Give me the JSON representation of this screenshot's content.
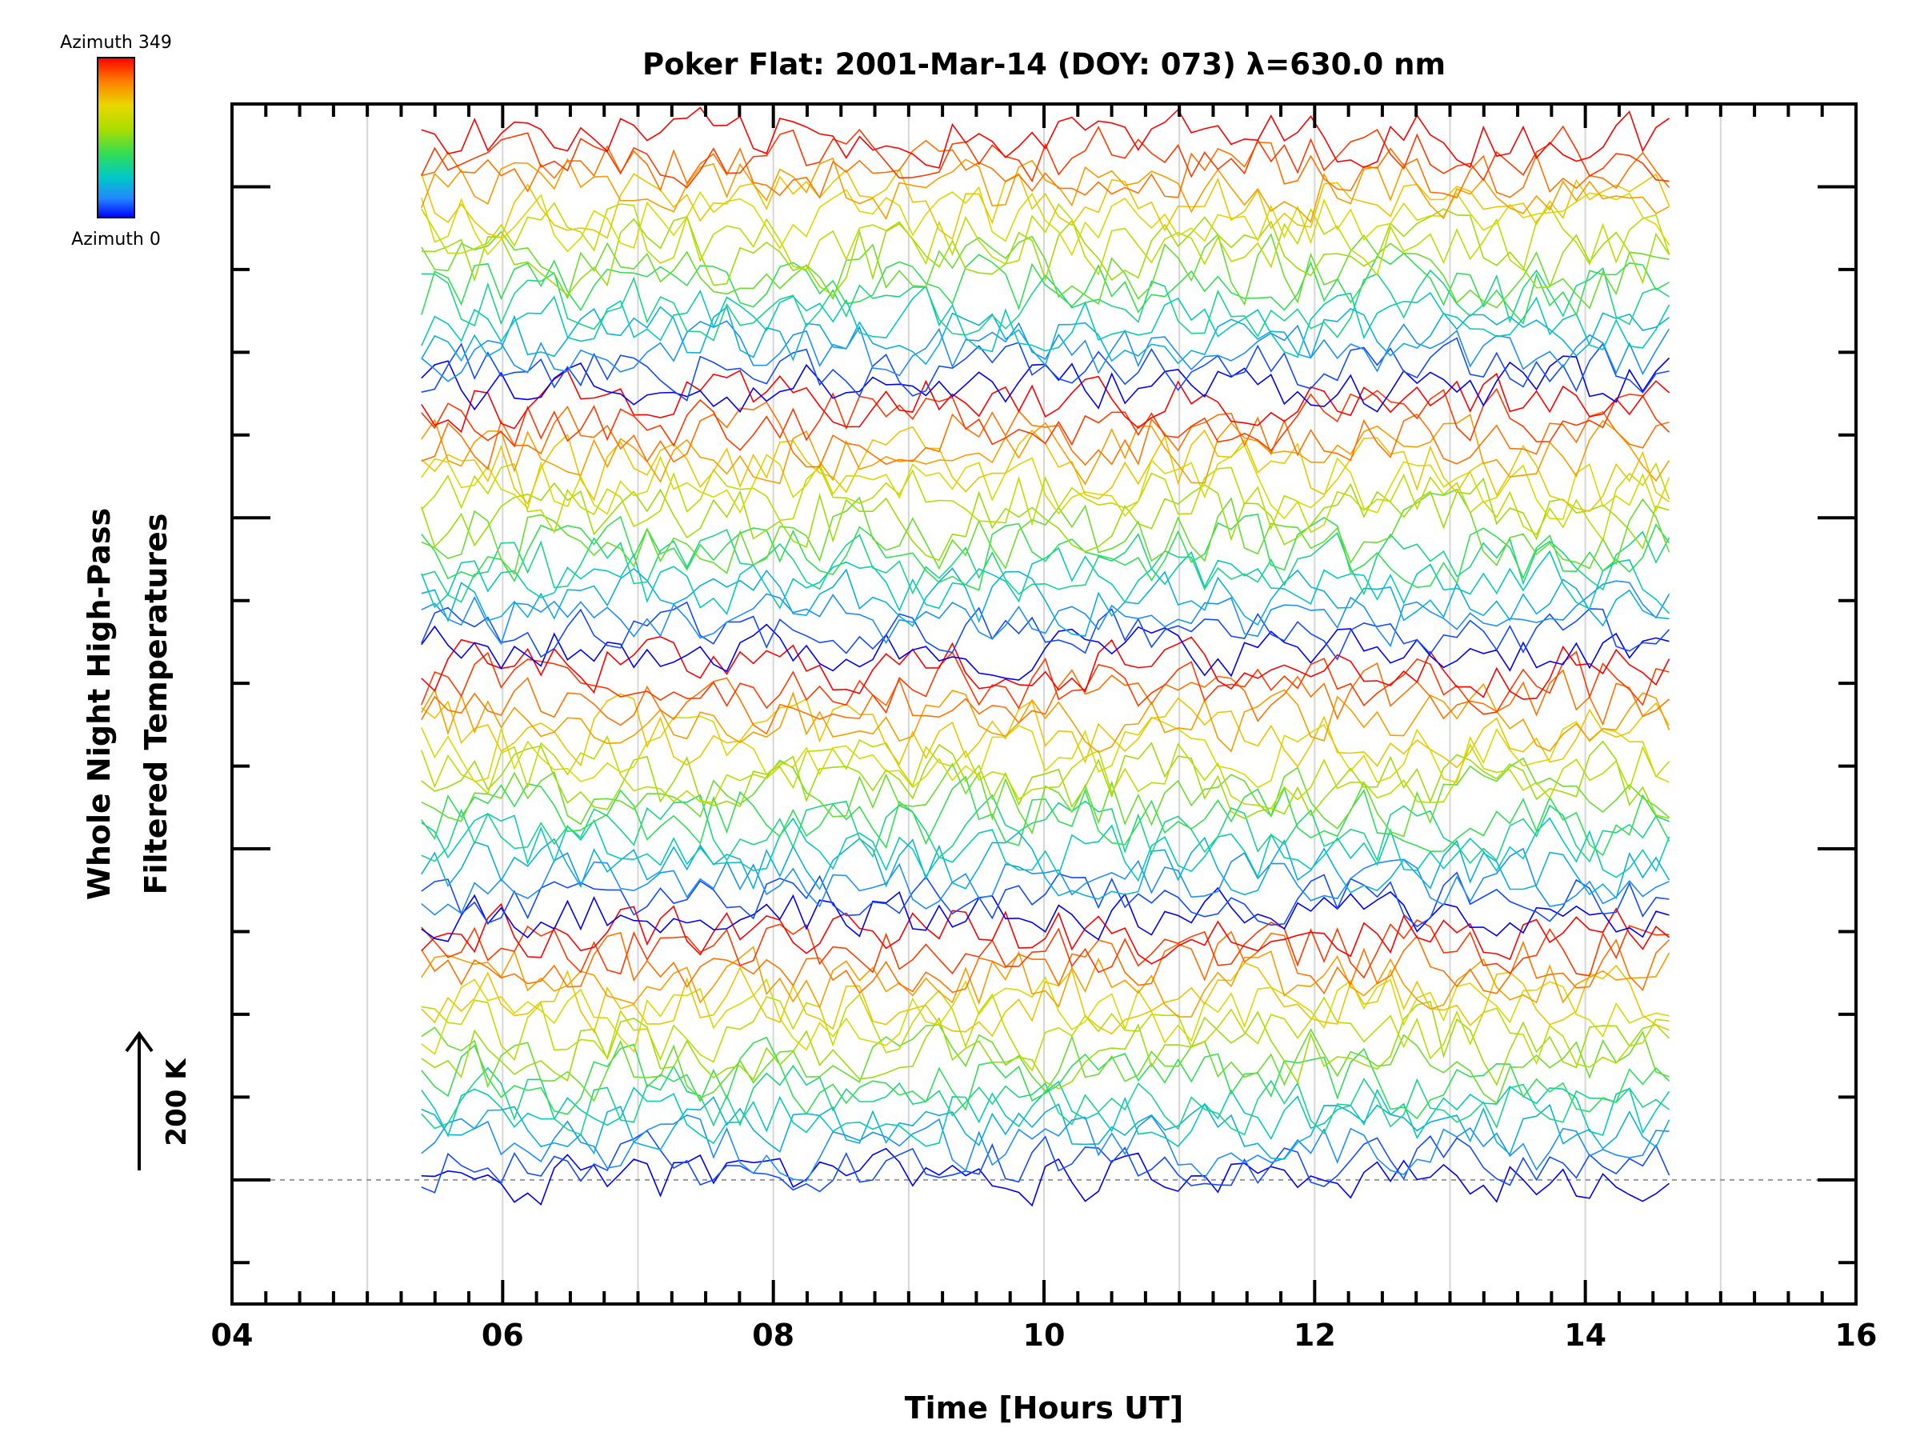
{
  "chart_data": {
    "type": "line",
    "title": "Poker Flat: 2001-Mar-14 (DOY: 073) λ=630.0 nm",
    "xlabel": "Time [Hours UT]",
    "ylabel_line1": "Whole Night High-Pass",
    "ylabel_line2": "Filtered Temperatures",
    "xlim": [
      4,
      16
    ],
    "x_ticks": [
      {
        "value": 4,
        "label": "04"
      },
      {
        "value": 6,
        "label": "06"
      },
      {
        "value": 8,
        "label": "08"
      },
      {
        "value": 10,
        "label": "10"
      },
      {
        "value": 12,
        "label": "12"
      },
      {
        "value": 14,
        "label": "14"
      },
      {
        "value": 16,
        "label": "16"
      }
    ],
    "x_minor_step": 0.25,
    "vertical_gridlines": [
      5,
      6,
      7,
      8,
      9,
      10,
      11,
      12,
      13,
      14,
      15
    ],
    "y_offset_step_K": 100,
    "ylim_K": [
      -150,
      1300
    ],
    "baseline_K": 0,
    "scale_bar": {
      "label": "200 K",
      "value_K": 200
    },
    "time_range_hours": [
      5.4,
      14.62
    ],
    "n_series": 64,
    "series_offset_K": 20,
    "series_amplitude_K": 25,
    "colorbar": {
      "top_label": "Azimuth 349",
      "bottom_label": "Azimuth 0",
      "colors": [
        "#ff0000",
        "#ff8000",
        "#e8d800",
        "#aadd00",
        "#33dd55",
        "#00c8c8",
        "#2288ff",
        "#0000ff"
      ]
    },
    "grid": "vertical",
    "legend": "colorbar top-left"
  }
}
